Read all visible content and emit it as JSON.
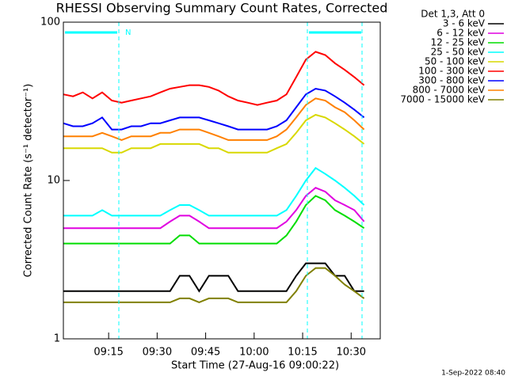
{
  "chart_data": {
    "type": "line",
    "title": "RHESSI Observing Summary Count Rates, Corrected",
    "x_label": "Start Time (27-Aug-16 09:00:22)",
    "y_label": "Corrected Count Rate (s⁻¹ detector⁻¹)",
    "legend_title": "Det 1,3, Att 0",
    "footer": "1-Sep-2022 08:40",
    "annotations": [
      "N"
    ],
    "log_y": true,
    "legend": "outside-right",
    "xlim": [
      "09:01",
      "10:39"
    ],
    "xticks": [
      "09:15",
      "09:30",
      "09:45",
      "10:00",
      "10:15",
      "10:30"
    ],
    "ylim": [
      1,
      100
    ],
    "yticks": [
      1,
      10,
      100
    ],
    "x": [
      "09:01",
      "09:04",
      "09:07",
      "09:10",
      "09:13",
      "09:16",
      "09:19",
      "09:22",
      "09:25",
      "09:28",
      "09:31",
      "09:34",
      "09:37",
      "09:40",
      "09:43",
      "09:46",
      "09:49",
      "09:52",
      "09:55",
      "09:58",
      "10:01",
      "10:04",
      "10:07",
      "10:10",
      "10:13",
      "10:16",
      "10:19",
      "10:22",
      "10:25",
      "10:28",
      "10:31",
      "10:34"
    ],
    "series": [
      {
        "name": "3 - 6 keV",
        "color": "#000000",
        "values": [
          2,
          2,
          2,
          2,
          2,
          2,
          2,
          2,
          2,
          2,
          2,
          2,
          2.5,
          2.5,
          2,
          2.5,
          2.5,
          2.5,
          2,
          2,
          2,
          2,
          2,
          2,
          2.5,
          3,
          3,
          3,
          2.5,
          2.5,
          2,
          2
        ]
      },
      {
        "name": "6 - 12 keV",
        "color": "#e000e0",
        "values": [
          5,
          5,
          5,
          5,
          5,
          5,
          5,
          5,
          5,
          5,
          5,
          5.5,
          6,
          6,
          5.5,
          5,
          5,
          5,
          5,
          5,
          5,
          5,
          5,
          5.5,
          6.5,
          8,
          9,
          8.5,
          7.5,
          7,
          6.5,
          5.5
        ]
      },
      {
        "name": "12 - 25 keV",
        "color": "#00dd00",
        "values": [
          4,
          4,
          4,
          4,
          4,
          4,
          4,
          4,
          4,
          4,
          4,
          4,
          4.5,
          4.5,
          4,
          4,
          4,
          4,
          4,
          4,
          4,
          4,
          4,
          4.5,
          5.5,
          7,
          8,
          7.5,
          6.5,
          6,
          5.5,
          5
        ]
      },
      {
        "name": "25 - 50 keV",
        "color": "#00ffff",
        "values": [
          6,
          6,
          6,
          6,
          6.5,
          6,
          6,
          6,
          6,
          6,
          6,
          6.5,
          7,
          7,
          6.5,
          6,
          6,
          6,
          6,
          6,
          6,
          6,
          6,
          6.5,
          8,
          10,
          12,
          11,
          10,
          9,
          8,
          7
        ]
      },
      {
        "name": "50 - 100 keV",
        "color": "#d8d800",
        "values": [
          16,
          16,
          16,
          16,
          16,
          15,
          15,
          16,
          16,
          16,
          17,
          17,
          17,
          17,
          17,
          16,
          16,
          15,
          15,
          15,
          15,
          15,
          16,
          17,
          20,
          24,
          26,
          25,
          23,
          21,
          19,
          17
        ]
      },
      {
        "name": "100 - 300 keV",
        "color": "#ff0000",
        "values": [
          35,
          34,
          36,
          33,
          36,
          32,
          31,
          32,
          33,
          34,
          36,
          38,
          39,
          40,
          40,
          39,
          37,
          34,
          32,
          31,
          30,
          31,
          32,
          35,
          45,
          58,
          65,
          62,
          55,
          50,
          45,
          40
        ]
      },
      {
        "name": "300 - 800 keV",
        "color": "#0000ff",
        "values": [
          23,
          22,
          22,
          23,
          25,
          21,
          21,
          22,
          22,
          23,
          23,
          24,
          25,
          25,
          25,
          24,
          23,
          22,
          21,
          21,
          21,
          21,
          22,
          24,
          29,
          35,
          38,
          37,
          34,
          31,
          28,
          25
        ]
      },
      {
        "name": "800 - 7000 keV",
        "color": "#ff8000",
        "values": [
          19,
          19,
          19,
          19,
          20,
          19,
          18,
          19,
          19,
          19,
          20,
          20,
          21,
          21,
          21,
          20,
          19,
          18,
          18,
          18,
          18,
          18,
          19,
          21,
          25,
          30,
          33,
          32,
          29,
          27,
          24,
          21
        ]
      },
      {
        "name": "7000 - 15000 keV",
        "color": "#808000",
        "values": [
          1.7,
          1.7,
          1.7,
          1.7,
          1.7,
          1.7,
          1.7,
          1.7,
          1.7,
          1.7,
          1.7,
          1.7,
          1.8,
          1.8,
          1.7,
          1.8,
          1.8,
          1.8,
          1.7,
          1.7,
          1.7,
          1.7,
          1.7,
          1.7,
          2,
          2.5,
          2.8,
          2.8,
          2.5,
          2.2,
          2,
          1.8
        ]
      }
    ]
  }
}
